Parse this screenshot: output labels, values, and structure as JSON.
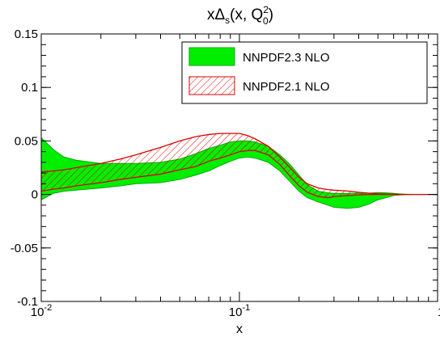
{
  "chart_data": {
    "type": "area",
    "title": {
      "prefix": "xΔ",
      "sub": "s",
      "mid": "(x, Q",
      "sup": "2",
      "sub2": "0",
      "suffix": ")"
    },
    "xlabel": "x",
    "ylabel": "",
    "xscale": "log",
    "xlim": [
      0.01,
      1
    ],
    "ylim": [
      -0.1,
      0.15
    ],
    "yticks": [
      -0.1,
      -0.05,
      0,
      0.05,
      0.1,
      0.15
    ],
    "ytick_labels": [
      "-0.1",
      "-0.05",
      "0",
      "0.05",
      "0.1",
      "0.15"
    ],
    "xticks": [
      {
        "value": 0.01,
        "base": "10",
        "exp": "-2"
      },
      {
        "value": 0.1,
        "base": "10",
        "exp": "-1"
      },
      {
        "value": 1,
        "base": "1",
        "exp": ""
      }
    ],
    "legend_position": "top-right",
    "grid": false,
    "series": [
      {
        "name": "NNPDF2.3 NLO",
        "style": "solid-fill",
        "fill_color": "#00ee00",
        "edge_color": "#00aa00",
        "x": [
          0.01,
          0.0115,
          0.013,
          0.015,
          0.02,
          0.025,
          0.03,
          0.04,
          0.05,
          0.06,
          0.07,
          0.08,
          0.09,
          0.1,
          0.11,
          0.12,
          0.14,
          0.16,
          0.18,
          0.2,
          0.22,
          0.25,
          0.28,
          0.3,
          0.35,
          0.4,
          0.45,
          0.5,
          0.55,
          0.6,
          0.65,
          0.7,
          0.75,
          0.8,
          0.9,
          1.0
        ],
        "upper": [
          0.053,
          0.042,
          0.035,
          0.032,
          0.029,
          0.029,
          0.029,
          0.03,
          0.033,
          0.038,
          0.043,
          0.046,
          0.049,
          0.05,
          0.05,
          0.049,
          0.045,
          0.037,
          0.028,
          0.018,
          0.009,
          0.003,
          0.0015,
          0.001,
          0.001,
          0.001,
          0.0012,
          0.0018,
          0.0015,
          0.001,
          0.0005,
          0.0002,
          0.0,
          0.0,
          0.0,
          0.0
        ],
        "lower": [
          -0.005,
          0.001,
          0.003,
          0.004,
          0.006,
          0.008,
          0.01,
          0.011,
          0.014,
          0.018,
          0.022,
          0.027,
          0.031,
          0.034,
          0.035,
          0.034,
          0.03,
          0.022,
          0.012,
          0.003,
          -0.003,
          -0.007,
          -0.01,
          -0.012,
          -0.013,
          -0.012,
          -0.009,
          -0.005,
          -0.003,
          -0.001,
          -0.0005,
          -0.0002,
          0.0,
          0.0,
          0.0,
          0.0
        ]
      },
      {
        "name": "NNPDF2.1 NLO",
        "style": "hatched",
        "fill_color": "#ffffff",
        "edge_color": "#dd0000",
        "x": [
          0.01,
          0.0115,
          0.013,
          0.015,
          0.02,
          0.025,
          0.03,
          0.04,
          0.05,
          0.06,
          0.07,
          0.08,
          0.09,
          0.1,
          0.11,
          0.12,
          0.14,
          0.16,
          0.18,
          0.2,
          0.22,
          0.25,
          0.28,
          0.3,
          0.35,
          0.4,
          0.45,
          0.5,
          0.55,
          0.6,
          0.65,
          0.7,
          0.75,
          0.8,
          0.9,
          1.0
        ],
        "upper": [
          0.021,
          0.022,
          0.023,
          0.025,
          0.029,
          0.033,
          0.037,
          0.044,
          0.05,
          0.054,
          0.056,
          0.057,
          0.057,
          0.057,
          0.055,
          0.052,
          0.045,
          0.035,
          0.025,
          0.016,
          0.01,
          0.006,
          0.0045,
          0.004,
          0.0032,
          0.002,
          0.0012,
          0.0006,
          0.0003,
          0.0002,
          0.0001,
          0.0,
          0.0,
          0.0,
          0.0,
          0.0
        ],
        "lower": [
          0.003,
          0.005,
          0.006,
          0.008,
          0.011,
          0.014,
          0.016,
          0.019,
          0.023,
          0.026,
          0.031,
          0.034,
          0.037,
          0.04,
          0.041,
          0.041,
          0.037,
          0.028,
          0.017,
          0.008,
          0.002,
          -0.002,
          -0.003,
          -0.002,
          -0.001,
          -0.0005,
          0.0,
          0.0,
          0.0,
          0.0,
          0.0,
          0.0,
          0.0,
          0.0,
          0.0,
          0.0
        ]
      }
    ]
  }
}
